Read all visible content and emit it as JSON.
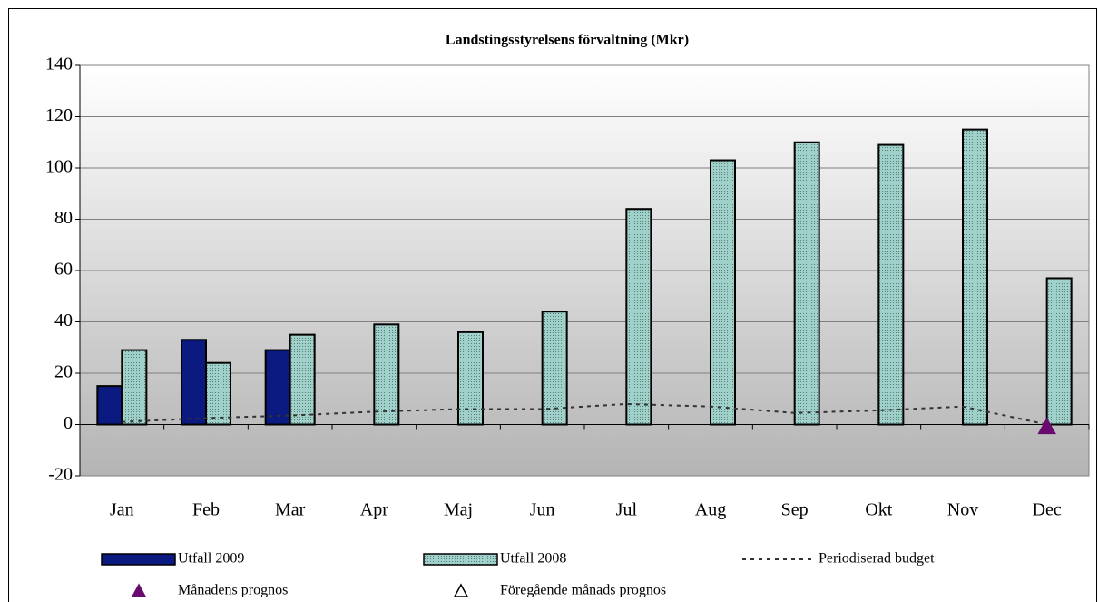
{
  "chart_data": {
    "type": "bar",
    "title": "Landstingsstyrelsens förvaltning (Mkr)",
    "categories": [
      "Jan",
      "Feb",
      "Mar",
      "Apr",
      "Maj",
      "Jun",
      "Jul",
      "Aug",
      "Sep",
      "Okt",
      "Nov",
      "Dec"
    ],
    "series": [
      {
        "name": "Utfall 2009",
        "type": "bar",
        "color": "#0b1a80",
        "values": [
          15,
          33,
          29,
          null,
          null,
          null,
          null,
          null,
          null,
          null,
          null,
          null
        ]
      },
      {
        "name": "Utfall 2008",
        "type": "bar",
        "color": "#9fd0ca",
        "pattern": "dots",
        "values": [
          29,
          24,
          35,
          39,
          36,
          44,
          84,
          103,
          110,
          109,
          115,
          57
        ]
      },
      {
        "name": "Periodiserad budget",
        "type": "line",
        "color": "#333333",
        "dash": true,
        "values": [
          1,
          2.5,
          3.5,
          5,
          6,
          6,
          8,
          7,
          4.5,
          5.5,
          7,
          0
        ]
      },
      {
        "name": "Månadens prognos",
        "type": "marker",
        "color": "#6a0a6e",
        "filled": true,
        "values": [
          null,
          null,
          null,
          null,
          null,
          null,
          null,
          null,
          null,
          null,
          null,
          -1
        ]
      },
      {
        "name": "Föregående månads prognos",
        "type": "marker",
        "color": "#000000",
        "filled": false,
        "values": [
          null,
          null,
          null,
          null,
          null,
          null,
          null,
          null,
          null,
          null,
          null,
          null
        ]
      }
    ],
    "ylim": [
      -20,
      140
    ],
    "yticks": [
      -20,
      0,
      20,
      40,
      60,
      80,
      100,
      120,
      140
    ],
    "grid": true
  }
}
